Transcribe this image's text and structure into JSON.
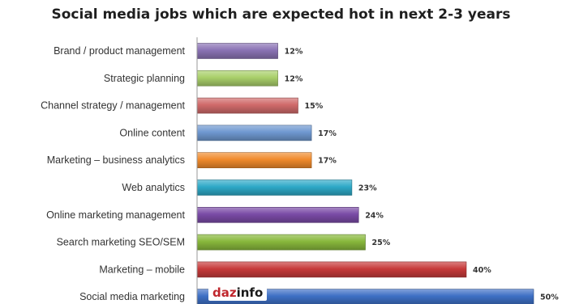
{
  "title": "Social media jobs which are expected hot in next 2-3 years",
  "logo": {
    "part1": "daz",
    "part2": "info"
  },
  "chart_data": {
    "type": "bar",
    "orientation": "horizontal",
    "title": "Social media jobs which are expected hot in next 2-3 years",
    "xlabel": "",
    "ylabel": "",
    "xlim": [
      0,
      50
    ],
    "grid": false,
    "legend": "none",
    "categories": [
      "Brand / product management",
      "Strategic planning",
      "Channel strategy / management",
      "Online content",
      "Marketing – business analytics",
      "Web analytics",
      "Online marketing management",
      "Search marketing SEO/SEM",
      "Marketing – mobile",
      "Social media marketing"
    ],
    "values": [
      12,
      12,
      15,
      17,
      17,
      23,
      24,
      25,
      40,
      50
    ],
    "value_labels": [
      "12%",
      "12%",
      "15%",
      "17%",
      "17%",
      "23%",
      "24%",
      "25%",
      "40%",
      "50%"
    ],
    "colors": [
      "#8a72b4",
      "#a9cf6a",
      "#d06a6a",
      "#6f98d0",
      "#f08a2c",
      "#2ea9c7",
      "#7a4ba6",
      "#88b83c",
      "#c73a3a",
      "#3d6fc4"
    ]
  }
}
